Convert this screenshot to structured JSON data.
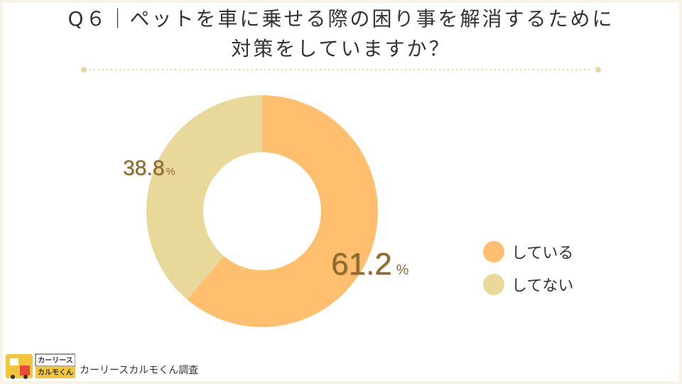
{
  "title": {
    "line1": "Q６｜ペットを車に乗せる際の困り事を解消するために",
    "line2": "対策をしていますか？"
  },
  "colors": {
    "doing": "#ffbf6e",
    "not_doing": "#e8d899",
    "label_text": "#8c6a2c",
    "divider": "#e6d79a",
    "background": "#f7f4e6"
  },
  "chart_data": {
    "type": "pie",
    "variant": "donut",
    "categories": [
      "している",
      "してない"
    ],
    "values": [
      61.2,
      38.8
    ],
    "unit": "%",
    "value_labels": [
      "61.2",
      "38.8"
    ],
    "colors": [
      "#ffbf6e",
      "#e8d899"
    ],
    "legend_position": "right",
    "start_angle_degrees": 0,
    "direction": "clockwise"
  },
  "legend": {
    "items": [
      {
        "label": "している",
        "color": "#ffbf6e"
      },
      {
        "label": "してない",
        "color": "#e8d899"
      }
    ]
  },
  "brand": {
    "logo_top_text": "カーリース",
    "logo_bottom_text": "カルモくん",
    "caption": "カーリースカルモくん調査"
  }
}
